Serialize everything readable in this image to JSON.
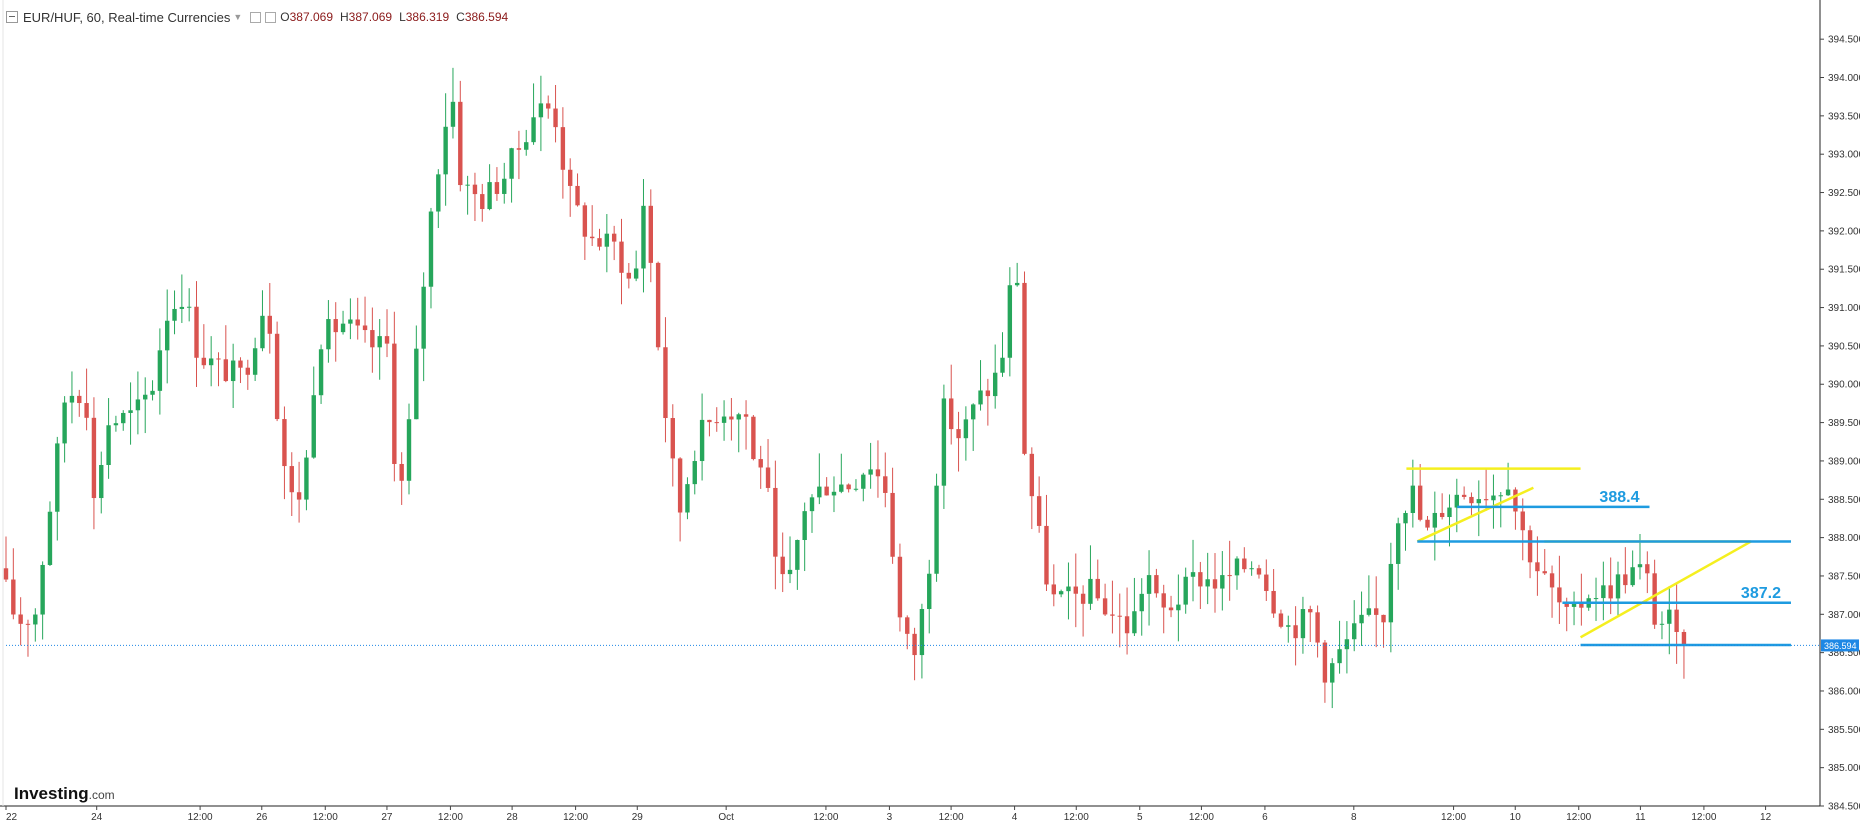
{
  "header": {
    "title": "EUR/HUF, 60, Real-time Currencies",
    "open_label": "O",
    "open": "387.069",
    "high_label": "H",
    "high": "387.069",
    "low_label": "L",
    "low": "386.319",
    "close_label": "C",
    "close": "386.594"
  },
  "logo": {
    "brand": "Investing",
    "domain": ".com"
  },
  "colors": {
    "up": "#26a65b",
    "down": "#d9534f",
    "fib_yellow": "#f5ef1f",
    "level_blue": "#1e9be0",
    "price_tag": "#1e88e5"
  },
  "chart_data": {
    "type": "candlestick",
    "ylim": [
      384.5,
      394.75
    ],
    "y_ticks": [
      "384.500",
      "385.000",
      "385.500",
      "386.000",
      "386.500",
      "387.000",
      "387.500",
      "388.000",
      "388.500",
      "389.000",
      "389.500",
      "390.000",
      "390.500",
      "391.000",
      "391.500",
      "392.000",
      "392.500",
      "393.000",
      "393.500",
      "394.000",
      "394.500"
    ],
    "x_labels": [
      {
        "pos": 0.0,
        "label": "22"
      },
      {
        "pos": 0.05,
        "label": "24"
      },
      {
        "pos": 0.107,
        "label": "12:00"
      },
      {
        "pos": 0.141,
        "label": "26"
      },
      {
        "pos": 0.176,
        "label": "12:00"
      },
      {
        "pos": 0.21,
        "label": "27"
      },
      {
        "pos": 0.245,
        "label": "12:00"
      },
      {
        "pos": 0.279,
        "label": "28"
      },
      {
        "pos": 0.314,
        "label": "12:00"
      },
      {
        "pos": 0.348,
        "label": "29"
      },
      {
        "pos": 0.397,
        "label": "Oct"
      },
      {
        "pos": 0.452,
        "label": "12:00"
      },
      {
        "pos": 0.487,
        "label": "3"
      },
      {
        "pos": 0.521,
        "label": "12:00"
      },
      {
        "pos": 0.556,
        "label": "4"
      },
      {
        "pos": 0.59,
        "label": "12:00"
      },
      {
        "pos": 0.625,
        "label": "5"
      },
      {
        "pos": 0.659,
        "label": "12:00"
      },
      {
        "pos": 0.694,
        "label": "6"
      },
      {
        "pos": 0.743,
        "label": "8"
      },
      {
        "pos": 0.798,
        "label": "12:00"
      },
      {
        "pos": 0.832,
        "label": "10"
      },
      {
        "pos": 0.867,
        "label": "12:00"
      },
      {
        "pos": 0.901,
        "label": "11"
      },
      {
        "pos": 0.936,
        "label": "12:00"
      },
      {
        "pos": 0.97,
        "label": "12"
      }
    ],
    "anchors": [
      [
        0.0,
        387.6
      ],
      [
        0.01,
        386.9
      ],
      [
        0.02,
        387.0
      ],
      [
        0.03,
        388.7
      ],
      [
        0.037,
        389.9
      ],
      [
        0.048,
        389.9
      ],
      [
        0.052,
        388.4
      ],
      [
        0.06,
        389.5
      ],
      [
        0.075,
        389.6
      ],
      [
        0.085,
        390.0
      ],
      [
        0.092,
        390.9
      ],
      [
        0.102,
        391.2
      ],
      [
        0.11,
        390.4
      ],
      [
        0.122,
        390.2
      ],
      [
        0.135,
        390.1
      ],
      [
        0.148,
        391.2
      ],
      [
        0.153,
        389.8
      ],
      [
        0.16,
        388.5
      ],
      [
        0.168,
        388.6
      ],
      [
        0.176,
        390.6
      ],
      [
        0.19,
        390.8
      ],
      [
        0.205,
        390.5
      ],
      [
        0.215,
        390.5
      ],
      [
        0.22,
        388.3
      ],
      [
        0.228,
        389.8
      ],
      [
        0.237,
        392.0
      ],
      [
        0.245,
        393.3
      ],
      [
        0.25,
        393.8
      ],
      [
        0.255,
        392.6
      ],
      [
        0.266,
        392.4
      ],
      [
        0.278,
        392.7
      ],
      [
        0.287,
        393.1
      ],
      [
        0.296,
        393.6
      ],
      [
        0.306,
        393.6
      ],
      [
        0.314,
        392.5
      ],
      [
        0.326,
        391.9
      ],
      [
        0.34,
        391.8
      ],
      [
        0.35,
        391.2
      ],
      [
        0.356,
        392.5
      ],
      [
        0.366,
        389.9
      ],
      [
        0.375,
        388.3
      ],
      [
        0.385,
        389.3
      ],
      [
        0.398,
        389.7
      ],
      [
        0.412,
        389.6
      ],
      [
        0.416,
        389.0
      ],
      [
        0.422,
        389.0
      ],
      [
        0.428,
        387.6
      ],
      [
        0.435,
        387.3
      ],
      [
        0.444,
        388.4
      ],
      [
        0.456,
        388.7
      ],
      [
        0.47,
        388.7
      ],
      [
        0.48,
        389.0
      ],
      [
        0.49,
        388.6
      ],
      [
        0.496,
        387.0
      ],
      [
        0.504,
        386.4
      ],
      [
        0.512,
        387.4
      ],
      [
        0.52,
        389.7
      ],
      [
        0.53,
        389.3
      ],
      [
        0.54,
        389.8
      ],
      [
        0.548,
        390.0
      ],
      [
        0.556,
        390.6
      ],
      [
        0.56,
        392.3
      ],
      [
        0.565,
        389.2
      ],
      [
        0.572,
        388.2
      ],
      [
        0.58,
        387.2
      ],
      [
        0.59,
        387.2
      ],
      [
        0.602,
        387.3
      ],
      [
        0.614,
        387.0
      ],
      [
        0.624,
        386.8
      ],
      [
        0.633,
        387.6
      ],
      [
        0.64,
        387.0
      ],
      [
        0.65,
        387.2
      ],
      [
        0.66,
        387.5
      ],
      [
        0.674,
        387.4
      ],
      [
        0.684,
        387.6
      ],
      [
        0.694,
        387.7
      ],
      [
        0.702,
        387.2
      ],
      [
        0.712,
        386.8
      ],
      [
        0.723,
        387.0
      ],
      [
        0.732,
        386.2
      ],
      [
        0.742,
        386.6
      ],
      [
        0.752,
        386.9
      ],
      [
        0.764,
        387.0
      ],
      [
        0.77,
        388.3
      ],
      [
        0.78,
        388.6
      ],
      [
        0.786,
        388.0
      ],
      [
        0.796,
        388.4
      ],
      [
        0.806,
        388.6
      ],
      [
        0.816,
        388.6
      ],
      [
        0.826,
        388.6
      ],
      [
        0.832,
        388.8
      ],
      [
        0.838,
        388.2
      ],
      [
        0.846,
        387.7
      ],
      [
        0.856,
        387.3
      ],
      [
        0.866,
        386.9
      ],
      [
        0.876,
        387.3
      ],
      [
        0.886,
        387.3
      ],
      [
        0.896,
        387.5
      ],
      [
        0.904,
        387.6
      ],
      [
        0.91,
        387.4
      ],
      [
        0.914,
        386.8
      ],
      [
        0.92,
        387.0
      ],
      [
        0.925,
        386.6
      ]
    ],
    "drawings": {
      "yellow_lines": [
        {
          "x1": 0.772,
          "y1": 388.9,
          "x2": 0.868,
          "y2": 388.9
        },
        {
          "x1": 0.778,
          "y1": 387.95,
          "x2": 0.842,
          "y2": 388.65
        },
        {
          "x1": 0.848,
          "y1": 387.95,
          "x2": 0.962,
          "y2": 387.95
        },
        {
          "x1": 0.868,
          "y1": 386.7,
          "x2": 0.962,
          "y2": 387.95
        }
      ],
      "blue_levels": [
        {
          "x1": 0.8,
          "x2": 0.906,
          "y": 388.4,
          "label": "388.4"
        },
        {
          "x1": 0.778,
          "x2": 0.984,
          "y": 387.95,
          "label": ""
        },
        {
          "x1": 0.858,
          "x2": 0.984,
          "y": 387.15,
          "label": "387.2"
        },
        {
          "x1": 0.868,
          "x2": 0.984,
          "y": 386.6,
          "label": ""
        }
      ],
      "last_price": 386.594,
      "last_price_label": "386.594"
    }
  }
}
